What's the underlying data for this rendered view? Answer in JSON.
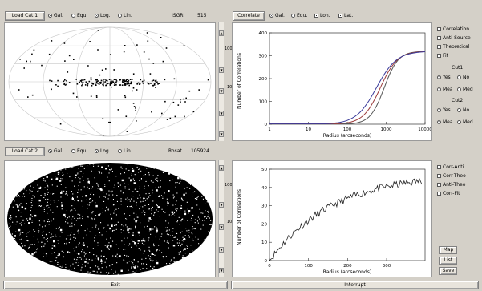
{
  "top_left": {
    "load_button": "Load Cat 1",
    "coords": [
      {
        "label": "Gal.",
        "checked": true
      },
      {
        "label": "Equ.",
        "checked": false
      },
      {
        "label": "Log.",
        "checked": true
      },
      {
        "label": "Lin.",
        "checked": false
      }
    ],
    "catalog_name": "ISGRI",
    "catalog_count": "515",
    "scroll_label_top": "100",
    "scroll_label_mid": "10"
  },
  "top_right": {
    "correlate_button": "Correlate",
    "coords": [
      {
        "label": "Gal.",
        "checked": true
      },
      {
        "label": "Equ.",
        "checked": false
      },
      {
        "label": "Lon.",
        "checked": true
      },
      {
        "label": "Lat.",
        "checked": true
      }
    ],
    "plot": {
      "ylabel": "Number of Correlations",
      "xlabel": "Radius (arcseconds)",
      "yticks": [
        "400",
        "300",
        "200",
        "100",
        "0"
      ],
      "xticks": [
        "1",
        "10",
        "100",
        "1000",
        "10000"
      ]
    }
  },
  "right_options": {
    "checks": [
      {
        "label": "Correlation",
        "checked": true
      },
      {
        "label": "Anti-Source",
        "checked": true
      },
      {
        "label": "Theoretical",
        "checked": true
      },
      {
        "label": "Fit",
        "checked": false
      }
    ],
    "cut1_label": "Cut1",
    "cut1_rows": [
      [
        {
          "label": "Yes",
          "checked": true
        },
        {
          "label": "No",
          "checked": false
        }
      ],
      [
        {
          "label": "Mea",
          "checked": false
        },
        {
          "label": "Med",
          "checked": false
        }
      ]
    ],
    "cut2_label": "Cut2",
    "cut2_rows": [
      [
        {
          "label": "Yes",
          "checked": false
        },
        {
          "label": "No",
          "checked": false
        }
      ],
      [
        {
          "label": "Mea",
          "checked": true
        },
        {
          "label": "Med",
          "checked": false
        }
      ]
    ],
    "diff_checks": [
      {
        "label": "Corr-Anti",
        "checked": true
      },
      {
        "label": "Corr-Theo",
        "checked": false
      },
      {
        "label": "Anti-Theo",
        "checked": false
      },
      {
        "label": "Corr-Fit",
        "checked": false
      }
    ]
  },
  "bottom_left": {
    "load_button": "Load Cat 2",
    "coords": [
      {
        "label": "Gal.",
        "checked": true
      },
      {
        "label": "Equ.",
        "checked": false
      },
      {
        "label": "Log.",
        "checked": true
      },
      {
        "label": "Lin.",
        "checked": false
      }
    ],
    "catalog_name": "Rosat",
    "catalog_count": "105924",
    "scroll_label_top": "100",
    "scroll_label_mid": "10"
  },
  "bottom_right": {
    "plot": {
      "ylabel": "Number of Correlations",
      "xlabel": "Radius (arcseconds)",
      "yticks": [
        "50",
        "40",
        "30",
        "20",
        "10",
        "0"
      ],
      "xticks": [
        "0",
        "100",
        "200",
        "300"
      ]
    }
  },
  "action_buttons": {
    "map": "Map",
    "list": "List",
    "save": "Save"
  },
  "footer": {
    "exit": "Exit",
    "interrupt": "Interrupt"
  },
  "colors": {
    "background": "#d4d0c8",
    "correlation": "#3a3a9a",
    "anti_source": "#9a3a3a",
    "theoretical": "#555555"
  }
}
